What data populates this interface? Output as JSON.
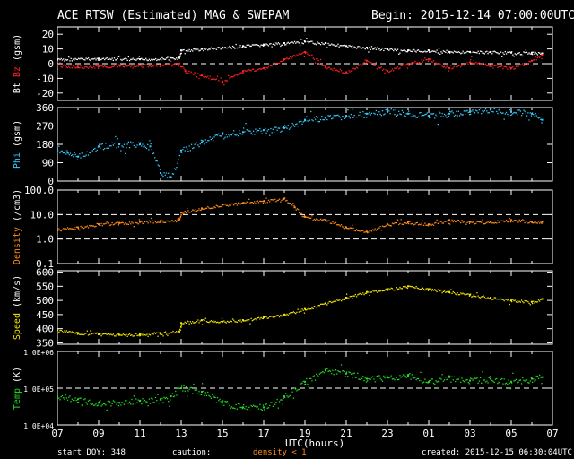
{
  "header": {
    "title": "ACE RTSW (Estimated) MAG & SWEPAM",
    "begin": "Begin: 2015-12-14 07:00:00UTC"
  },
  "footer": {
    "start_doy": "start DOY: 348",
    "caution_label": "caution:",
    "caution_value": "density < 1",
    "created": "created: 2015-12-15 06:30:04UTC"
  },
  "colors": {
    "white": "#ffffff",
    "bz": "#ff2020",
    "phi": "#33ccff",
    "density": "#ff8c1a",
    "speed": "#f2e600",
    "temp": "#22dd22",
    "frame": "#ffffff",
    "background": "#000000"
  },
  "chart_data": [
    {
      "type": "line",
      "panel": "mag",
      "ylabel_parts": [
        {
          "text": "Bt",
          "color": "#ffffff"
        },
        {
          "text": " Bz",
          "color": "#ff2020"
        },
        {
          "text": " (gsm)",
          "color": "#ffffff"
        }
      ],
      "ylim": [
        -25,
        25
      ],
      "yticks": [
        {
          "v": 20,
          "l": "20"
        },
        {
          "v": 10,
          "l": "10"
        },
        {
          "v": 0,
          "l": "0"
        },
        {
          "v": -10,
          "l": "-10"
        },
        {
          "v": -20,
          "l": "-20"
        }
      ],
      "dashed": [
        0
      ],
      "series": [
        {
          "name": "Bt",
          "color": "#ffffff",
          "x": [
            0,
            2,
            4,
            5.9,
            6,
            7,
            8,
            9,
            10,
            11,
            12,
            13,
            14,
            15,
            16,
            17,
            18,
            19,
            20,
            21,
            22,
            23,
            23.5
          ],
          "y": [
            3,
            3.5,
            3,
            4,
            9,
            10,
            11,
            12,
            13,
            14,
            15,
            14,
            12,
            11,
            10,
            9,
            9,
            8,
            8,
            8,
            7.5,
            7.5,
            7
          ]
        },
        {
          "name": "Bz",
          "color": "#ff2020",
          "x": [
            0,
            1,
            2,
            3,
            4,
            5,
            5.9,
            6.2,
            7,
            8,
            9,
            10,
            11,
            12,
            13,
            14,
            15,
            16,
            17,
            18,
            19,
            20,
            21,
            22,
            23,
            23.5
          ],
          "y": [
            -1,
            -2,
            -2,
            -1,
            -1,
            -1,
            0,
            -5,
            -8,
            -12,
            -5,
            -3,
            3,
            8,
            -2,
            -6,
            2,
            -5,
            0,
            3,
            -3,
            1,
            -1,
            -3,
            2,
            6
          ]
        }
      ]
    },
    {
      "type": "scatter",
      "panel": "phi",
      "ylabel_parts": [
        {
          "text": "Phi",
          "color": "#33ccff"
        },
        {
          "text": " (gsm)",
          "color": "#ffffff"
        }
      ],
      "ylim": [
        0,
        360
      ],
      "yticks": [
        {
          "v": 360,
          "l": "360"
        },
        {
          "v": 270,
          "l": "270"
        },
        {
          "v": 180,
          "l": "180"
        },
        {
          "v": 90,
          "l": "90"
        },
        {
          "v": 0,
          "l": "0"
        }
      ],
      "dashed": [],
      "series": [
        {
          "name": "Phi",
          "color": "#33ccff",
          "x": [
            0,
            0.5,
            1,
            2,
            3,
            4,
            4.5,
            5,
            5.5,
            6,
            7,
            8,
            9,
            10,
            11,
            12,
            13,
            14,
            15,
            16,
            17,
            18,
            19,
            20,
            21,
            22,
            23,
            23.5
          ],
          "y": [
            160,
            140,
            120,
            170,
            180,
            180,
            170,
            40,
            20,
            150,
            190,
            230,
            240,
            250,
            260,
            300,
            310,
            320,
            330,
            340,
            330,
            320,
            330,
            340,
            350,
            340,
            330,
            300
          ]
        }
      ]
    },
    {
      "type": "line",
      "panel": "density",
      "log": true,
      "ylabel_parts": [
        {
          "text": "Density",
          "color": "#ff8c1a"
        },
        {
          "text": " (/cm3)",
          "color": "#ffffff"
        }
      ],
      "ylim": [
        0.1,
        100
      ],
      "yticks": [
        {
          "v": 100,
          "l": "100.0"
        },
        {
          "v": 10,
          "l": "10.0"
        },
        {
          "v": 1,
          "l": "1.0"
        },
        {
          "v": 0.1,
          "l": "0.1"
        }
      ],
      "dashed": [
        10,
        1
      ],
      "series": [
        {
          "name": "Density",
          "color": "#ff8c1a",
          "x": [
            0,
            1,
            2,
            3,
            4,
            5,
            5.9,
            6,
            7,
            8,
            9,
            10,
            11,
            11.5,
            12,
            13,
            14,
            15,
            16,
            17,
            18,
            19,
            20,
            21,
            22,
            23,
            23.5
          ],
          "y": [
            2.5,
            3,
            4,
            4.5,
            5,
            5.5,
            6,
            12,
            18,
            25,
            30,
            35,
            45,
            20,
            8,
            6,
            3,
            2,
            4,
            5,
            4,
            6,
            5,
            5,
            6,
            5,
            5
          ]
        }
      ]
    },
    {
      "type": "line",
      "panel": "speed",
      "ylabel_parts": [
        {
          "text": "Speed",
          "color": "#f2e600"
        },
        {
          "text": " (km/s)",
          "color": "#ffffff"
        }
      ],
      "ylim": [
        345,
        605
      ],
      "yticks": [
        {
          "v": 600,
          "l": "600"
        },
        {
          "v": 550,
          "l": "550"
        },
        {
          "v": 500,
          "l": "500"
        },
        {
          "v": 450,
          "l": "450"
        },
        {
          "v": 400,
          "l": "400"
        },
        {
          "v": 350,
          "l": "350"
        }
      ],
      "dashed": [],
      "series": [
        {
          "name": "Speed",
          "color": "#f2e600",
          "x": [
            0,
            1,
            2,
            3,
            4,
            5,
            5.9,
            6,
            7,
            8,
            9,
            10,
            11,
            12,
            13,
            14,
            15,
            16,
            17,
            18,
            19,
            20,
            21,
            22,
            23,
            23.5
          ],
          "y": [
            395,
            385,
            380,
            378,
            380,
            385,
            390,
            420,
            430,
            425,
            430,
            440,
            450,
            470,
            490,
            510,
            530,
            540,
            550,
            540,
            530,
            520,
            510,
            500,
            495,
            505
          ]
        }
      ]
    },
    {
      "type": "scatter",
      "panel": "temp",
      "log": true,
      "ylabel_parts": [
        {
          "text": "Temp",
          "color": "#22dd22"
        },
        {
          "text": " (K)",
          "color": "#ffffff"
        }
      ],
      "ylim": [
        10000,
        1000000
      ],
      "yticks": [
        {
          "v": 1000000,
          "l": "1.0E+06"
        },
        {
          "v": 100000,
          "l": "1.0E+05"
        },
        {
          "v": 10000,
          "l": "1.0E+04"
        }
      ],
      "dashed": [
        100000
      ],
      "series": [
        {
          "name": "Temp",
          "color": "#22dd22",
          "x": [
            0,
            1,
            2,
            3,
            4,
            5,
            5.5,
            6,
            7,
            8,
            9,
            10,
            11,
            12,
            13,
            14,
            15,
            16,
            17,
            18,
            19,
            20,
            21,
            22,
            23,
            23.5
          ],
          "y": [
            60000,
            50000,
            40000,
            40000,
            45000,
            50000,
            60000,
            100000,
            80000,
            40000,
            30000,
            30000,
            60000,
            150000,
            300000,
            250000,
            180000,
            200000,
            220000,
            150000,
            200000,
            160000,
            180000,
            150000,
            180000,
            200000
          ]
        }
      ]
    }
  ],
  "xaxis": {
    "label": "UTC(hours)",
    "ticks": [
      "07",
      "09",
      "11",
      "13",
      "15",
      "17",
      "19",
      "21",
      "23",
      "01",
      "03",
      "05",
      "07"
    ]
  }
}
